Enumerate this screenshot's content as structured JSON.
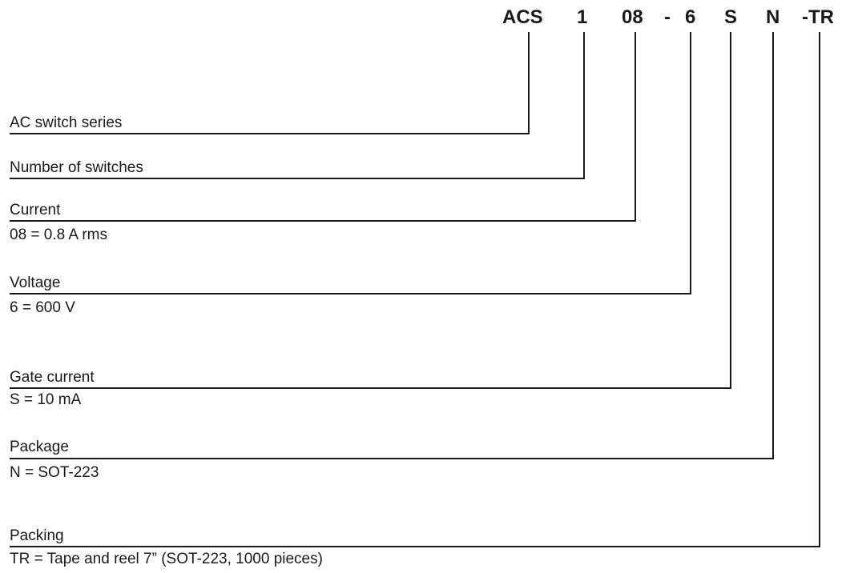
{
  "code_parts": [
    "ACS",
    "1",
    "08",
    "-",
    "6",
    "S",
    "N",
    "-TR"
  ],
  "fields": [
    {
      "label": "AC switch series",
      "description": ""
    },
    {
      "label": "Number of switches",
      "description": ""
    },
    {
      "label": "Current",
      "description": "08 = 0.8 A rms"
    },
    {
      "label": "Voltage",
      "description": "6 = 600 V"
    },
    {
      "label": "Gate current",
      "description": "S = 10 mA"
    },
    {
      "label": "Package",
      "description": "N = SOT-223"
    },
    {
      "label": "Packing",
      "description": "TR = Tape and reel 7”  (SOT-223, 1000 pieces)"
    }
  ]
}
